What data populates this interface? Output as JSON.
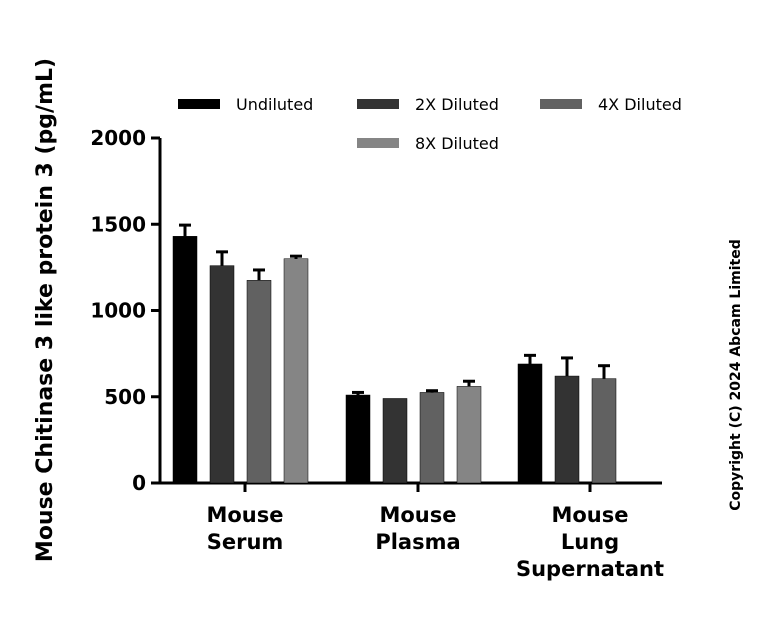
{
  "chart_data": {
    "type": "bar",
    "title": "",
    "xlabel": "",
    "ylabel": "Mouse Chitinase 3 like protein 3 (pg/mL)",
    "ylim": [
      0,
      2000
    ],
    "yticks": [
      "0",
      "500",
      "1000",
      "1500",
      "2000"
    ],
    "grid": false,
    "legend_position": "top",
    "categories": [
      [
        "Mouse",
        "Serum"
      ],
      [
        "Mouse",
        "Plasma"
      ],
      [
        "Mouse",
        "Lung",
        "Supernatant"
      ]
    ],
    "series": [
      {
        "name": "Undiluted",
        "color": "#000000",
        "values": [
          1430,
          510,
          690
        ],
        "errors": [
          65,
          15,
          50
        ]
      },
      {
        "name": "2X Diluted",
        "color": "#333333",
        "values": [
          1260,
          490,
          620
        ],
        "errors": [
          80,
          0,
          105
        ]
      },
      {
        "name": "4X Diluted",
        "color": "#616161",
        "values": [
          1175,
          525,
          605
        ],
        "errors": [
          60,
          10,
          75
        ]
      },
      {
        "name": "8X Diluted",
        "color": "#858585",
        "values": [
          1300,
          560,
          null
        ],
        "errors": [
          15,
          30,
          null
        ]
      }
    ]
  },
  "copyright": "Copyright (C) 2024 Abcam Limited"
}
